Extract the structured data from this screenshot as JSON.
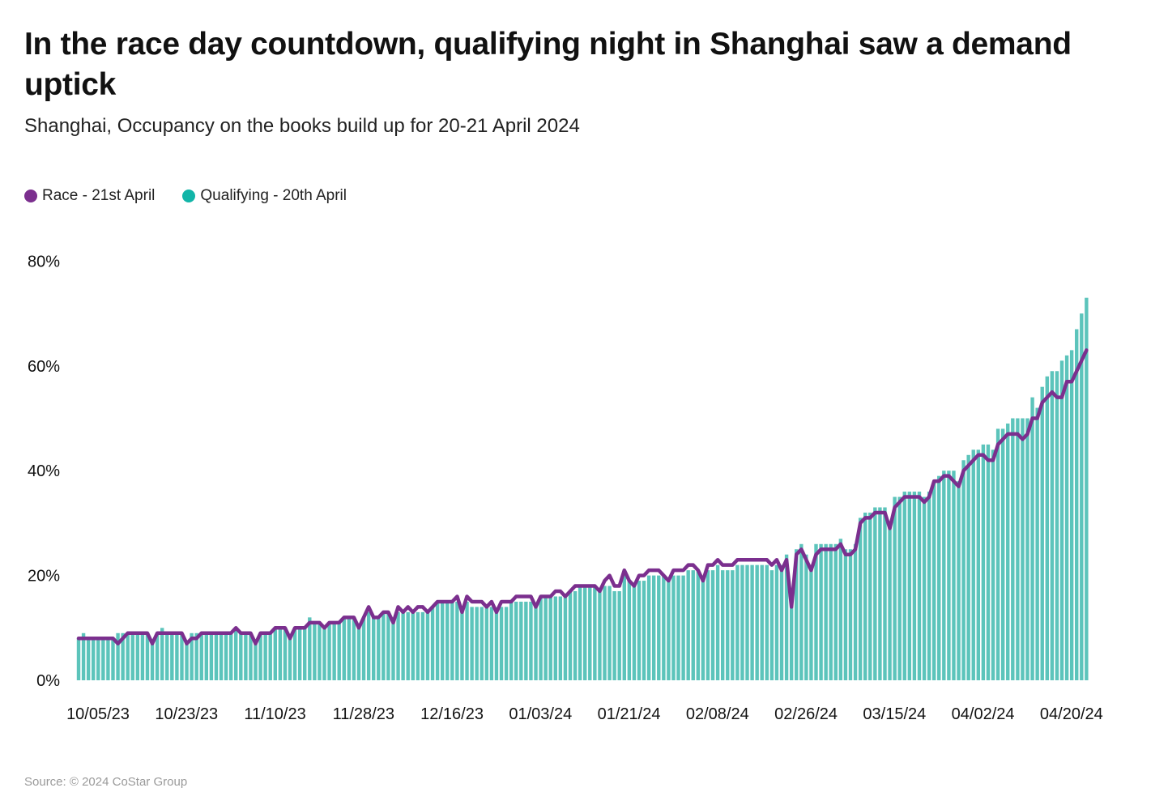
{
  "header": {
    "title": "In the race day countdown, qualifying night in Shanghai saw a demand uptick",
    "subtitle": "Shanghai, Occupancy on the books build up for 20-21 April 2024"
  },
  "footer": {
    "source": "Source: © 2024 CoStar Group"
  },
  "colors": {
    "race": "#7b2f8e",
    "qualifying": "#5cc4bb",
    "legend_qualifying": "#12b5a8",
    "axis_text": "#111111"
  },
  "chart_data": {
    "type": "bar",
    "title": "In the race day countdown, qualifying night in Shanghai saw a demand uptick",
    "subtitle": "Shanghai, Occupancy on the books build up for 20-21 April 2024",
    "xlabel": "",
    "ylabel": "",
    "ylim": [
      0,
      80
    ],
    "y_ticks": [
      0,
      20,
      40,
      60,
      80
    ],
    "y_tick_labels": [
      "0%",
      "20%",
      "40%",
      "60%",
      "80%"
    ],
    "x_ticks": [
      {
        "label": "10/05/23",
        "day": 0
      },
      {
        "label": "10/23/23",
        "day": 18
      },
      {
        "label": "11/10/23",
        "day": 36
      },
      {
        "label": "11/28/23",
        "day": 54
      },
      {
        "label": "12/16/23",
        "day": 72
      },
      {
        "label": "01/03/24",
        "day": 90
      },
      {
        "label": "01/21/24",
        "day": 108
      },
      {
        "label": "02/08/24",
        "day": 126
      },
      {
        "label": "02/26/24",
        "day": 144
      },
      {
        "label": "03/15/24",
        "day": 162
      },
      {
        "label": "04/02/24",
        "day": 180
      },
      {
        "label": "04/20/24",
        "day": 198
      }
    ],
    "legend_position": "top-left",
    "series": [
      {
        "name": "Race - 21st April",
        "kind": "line",
        "anchors": [
          [
            0,
            8
          ],
          [
            7,
            8
          ],
          [
            8,
            7
          ],
          [
            9,
            8
          ],
          [
            10,
            9
          ],
          [
            14,
            9
          ],
          [
            15,
            7
          ],
          [
            16,
            9
          ],
          [
            21,
            9
          ],
          [
            22,
            7
          ],
          [
            23,
            8
          ],
          [
            24,
            8
          ],
          [
            25,
            9
          ],
          [
            31,
            9
          ],
          [
            32,
            10
          ],
          [
            33,
            9
          ],
          [
            35,
            9
          ],
          [
            36,
            7
          ],
          [
            37,
            9
          ],
          [
            39,
            9
          ],
          [
            40,
            10
          ],
          [
            42,
            10
          ],
          [
            43,
            8
          ],
          [
            44,
            10
          ],
          [
            46,
            10
          ],
          [
            47,
            11
          ],
          [
            49,
            11
          ],
          [
            50,
            10
          ],
          [
            51,
            11
          ],
          [
            53,
            11
          ],
          [
            54,
            12
          ],
          [
            56,
            12
          ],
          [
            57,
            10
          ],
          [
            58,
            12
          ],
          [
            59,
            14
          ],
          [
            60,
            12
          ],
          [
            61,
            12
          ],
          [
            62,
            13
          ],
          [
            63,
            13
          ],
          [
            64,
            11
          ],
          [
            65,
            14
          ],
          [
            66,
            13
          ],
          [
            67,
            14
          ],
          [
            68,
            13
          ],
          [
            69,
            14
          ],
          [
            70,
            14
          ],
          [
            71,
            13
          ],
          [
            72,
            14
          ],
          [
            73,
            15
          ],
          [
            76,
            15
          ],
          [
            77,
            16
          ],
          [
            78,
            13
          ],
          [
            79,
            16
          ],
          [
            80,
            15
          ],
          [
            82,
            15
          ],
          [
            83,
            14
          ],
          [
            84,
            15
          ],
          [
            85,
            13
          ],
          [
            86,
            15
          ],
          [
            88,
            15
          ],
          [
            89,
            16
          ],
          [
            92,
            16
          ],
          [
            93,
            14
          ],
          [
            94,
            16
          ],
          [
            96,
            16
          ],
          [
            97,
            17
          ],
          [
            98,
            17
          ],
          [
            99,
            16
          ],
          [
            100,
            17
          ],
          [
            101,
            18
          ],
          [
            105,
            18
          ],
          [
            106,
            17
          ],
          [
            107,
            19
          ],
          [
            108,
            20
          ],
          [
            109,
            18
          ],
          [
            110,
            18
          ],
          [
            111,
            21
          ],
          [
            112,
            19
          ],
          [
            113,
            18
          ],
          [
            114,
            20
          ],
          [
            115,
            20
          ],
          [
            116,
            21
          ],
          [
            118,
            21
          ],
          [
            119,
            20
          ],
          [
            120,
            19
          ],
          [
            121,
            21
          ],
          [
            123,
            21
          ],
          [
            124,
            22
          ],
          [
            125,
            22
          ],
          [
            126,
            21
          ],
          [
            127,
            19
          ],
          [
            128,
            22
          ],
          [
            129,
            22
          ],
          [
            130,
            23
          ],
          [
            131,
            22
          ],
          [
            133,
            22
          ],
          [
            134,
            23
          ],
          [
            140,
            23
          ],
          [
            141,
            22
          ],
          [
            142,
            23
          ],
          [
            143,
            21
          ],
          [
            144,
            23
          ],
          [
            145,
            14
          ],
          [
            146,
            24
          ],
          [
            147,
            25
          ],
          [
            148,
            23
          ],
          [
            149,
            21
          ],
          [
            150,
            24
          ],
          [
            151,
            25
          ],
          [
            154,
            25
          ],
          [
            155,
            26
          ],
          [
            156,
            24
          ],
          [
            157,
            24
          ],
          [
            158,
            25
          ],
          [
            159,
            30
          ],
          [
            160,
            31
          ],
          [
            161,
            31
          ],
          [
            162,
            32
          ],
          [
            164,
            32
          ],
          [
            165,
            29
          ],
          [
            166,
            33
          ],
          [
            167,
            34
          ],
          [
            168,
            35
          ],
          [
            171,
            35
          ],
          [
            172,
            34
          ],
          [
            173,
            35
          ],
          [
            174,
            38
          ],
          [
            175,
            38
          ],
          [
            176,
            39
          ],
          [
            177,
            39
          ],
          [
            178,
            38
          ],
          [
            179,
            37
          ],
          [
            180,
            40
          ],
          [
            181,
            41
          ],
          [
            182,
            42
          ],
          [
            183,
            43
          ],
          [
            184,
            43
          ],
          [
            185,
            42
          ],
          [
            186,
            42
          ],
          [
            187,
            45
          ],
          [
            188,
            46
          ],
          [
            189,
            47
          ],
          [
            191,
            47
          ],
          [
            192,
            46
          ],
          [
            193,
            47
          ],
          [
            194,
            50
          ],
          [
            195,
            50
          ],
          [
            196,
            53
          ],
          [
            197,
            54
          ],
          [
            198,
            55
          ],
          [
            199,
            54
          ],
          [
            200,
            54
          ],
          [
            201,
            57
          ],
          [
            202,
            57
          ],
          [
            203,
            59
          ],
          [
            204,
            61
          ],
          [
            205,
            63
          ]
        ]
      },
      {
        "name": "Qualifying - 20th April",
        "kind": "bar",
        "anchors": [
          [
            0,
            8
          ],
          [
            1,
            9
          ],
          [
            2,
            8
          ],
          [
            7,
            8
          ],
          [
            8,
            9
          ],
          [
            9,
            9
          ],
          [
            10,
            9
          ],
          [
            14,
            9
          ],
          [
            15,
            7
          ],
          [
            16,
            9
          ],
          [
            17,
            10
          ],
          [
            18,
            9
          ],
          [
            21,
            9
          ],
          [
            22,
            7
          ],
          [
            23,
            9
          ],
          [
            24,
            9
          ],
          [
            25,
            9
          ],
          [
            31,
            9
          ],
          [
            32,
            10
          ],
          [
            33,
            9
          ],
          [
            35,
            9
          ],
          [
            36,
            7
          ],
          [
            37,
            9
          ],
          [
            39,
            9
          ],
          [
            40,
            10
          ],
          [
            42,
            10
          ],
          [
            43,
            8
          ],
          [
            44,
            10
          ],
          [
            46,
            10
          ],
          [
            47,
            12
          ],
          [
            48,
            11
          ],
          [
            49,
            11
          ],
          [
            50,
            10
          ],
          [
            51,
            11
          ],
          [
            53,
            11
          ],
          [
            54,
            12
          ],
          [
            56,
            12
          ],
          [
            57,
            10
          ],
          [
            58,
            12
          ],
          [
            59,
            13
          ],
          [
            60,
            12
          ],
          [
            61,
            12
          ],
          [
            62,
            13
          ],
          [
            63,
            13
          ],
          [
            64,
            11
          ],
          [
            65,
            13
          ],
          [
            66,
            13
          ],
          [
            67,
            13
          ],
          [
            68,
            13
          ],
          [
            69,
            13
          ],
          [
            70,
            13
          ],
          [
            71,
            13
          ],
          [
            72,
            14
          ],
          [
            73,
            15
          ],
          [
            76,
            15
          ],
          [
            77,
            15
          ],
          [
            78,
            13
          ],
          [
            79,
            15
          ],
          [
            80,
            14
          ],
          [
            82,
            14
          ],
          [
            83,
            14
          ],
          [
            84,
            14
          ],
          [
            85,
            13
          ],
          [
            86,
            14
          ],
          [
            88,
            15
          ],
          [
            89,
            15
          ],
          [
            92,
            15
          ],
          [
            93,
            14
          ],
          [
            94,
            16
          ],
          [
            96,
            16
          ],
          [
            97,
            16
          ],
          [
            98,
            16
          ],
          [
            99,
            16
          ],
          [
            100,
            17
          ],
          [
            101,
            17
          ],
          [
            102,
            18
          ],
          [
            105,
            18
          ],
          [
            106,
            17
          ],
          [
            107,
            18
          ],
          [
            108,
            18
          ],
          [
            109,
            17
          ],
          [
            110,
            17
          ],
          [
            111,
            20
          ],
          [
            112,
            19
          ],
          [
            113,
            18
          ],
          [
            114,
            19
          ],
          [
            115,
            19
          ],
          [
            116,
            20
          ],
          [
            118,
            20
          ],
          [
            119,
            20
          ],
          [
            120,
            19
          ],
          [
            121,
            20
          ],
          [
            123,
            20
          ],
          [
            124,
            21
          ],
          [
            125,
            21
          ],
          [
            126,
            21
          ],
          [
            127,
            19
          ],
          [
            128,
            21
          ],
          [
            129,
            21
          ],
          [
            130,
            22
          ],
          [
            131,
            21
          ],
          [
            133,
            21
          ],
          [
            134,
            22
          ],
          [
            140,
            22
          ],
          [
            141,
            21
          ],
          [
            142,
            22
          ],
          [
            143,
            22
          ],
          [
            144,
            24
          ],
          [
            145,
            15
          ],
          [
            146,
            25
          ],
          [
            147,
            26
          ],
          [
            148,
            24
          ],
          [
            149,
            22
          ],
          [
            150,
            26
          ],
          [
            151,
            26
          ],
          [
            154,
            26
          ],
          [
            155,
            27
          ],
          [
            156,
            25
          ],
          [
            157,
            25
          ],
          [
            158,
            26
          ],
          [
            159,
            31
          ],
          [
            160,
            32
          ],
          [
            161,
            32
          ],
          [
            162,
            33
          ],
          [
            164,
            33
          ],
          [
            165,
            30
          ],
          [
            166,
            35
          ],
          [
            167,
            35
          ],
          [
            168,
            36
          ],
          [
            171,
            36
          ],
          [
            172,
            35
          ],
          [
            173,
            36
          ],
          [
            174,
            38
          ],
          [
            175,
            39
          ],
          [
            176,
            40
          ],
          [
            177,
            40
          ],
          [
            178,
            40
          ],
          [
            179,
            38
          ],
          [
            180,
            42
          ],
          [
            181,
            43
          ],
          [
            182,
            44
          ],
          [
            183,
            44
          ],
          [
            184,
            45
          ],
          [
            185,
            45
          ],
          [
            186,
            44
          ],
          [
            187,
            48
          ],
          [
            188,
            48
          ],
          [
            189,
            49
          ],
          [
            190,
            50
          ],
          [
            192,
            50
          ],
          [
            193,
            50
          ],
          [
            194,
            54
          ],
          [
            195,
            52
          ],
          [
            196,
            56
          ],
          [
            197,
            58
          ],
          [
            198,
            59
          ],
          [
            199,
            59
          ],
          [
            200,
            61
          ],
          [
            201,
            62
          ],
          [
            202,
            63
          ],
          [
            203,
            67
          ],
          [
            204,
            70
          ],
          [
            205,
            73
          ]
        ]
      }
    ]
  }
}
